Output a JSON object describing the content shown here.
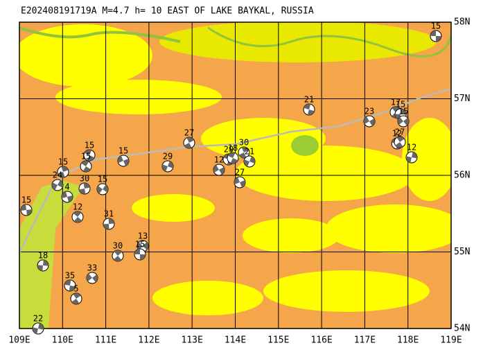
{
  "title": "E202408191719A M=4.7 h= 10 EAST OF LAKE BAYKAL, RUSSIA",
  "lat_labels": [
    "58N",
    "57N",
    "56N",
    "55N",
    "54N"
  ],
  "lon_labels": [
    "109E",
    "110E",
    "111E",
    "112E",
    "113E",
    "114E",
    "115E",
    "116E",
    "117E",
    "118E",
    "119E"
  ],
  "events": [
    {
      "label": "15"
    },
    {
      "label": "17"
    },
    {
      "label": "15"
    },
    {
      "label": "15"
    },
    {
      "label": "12"
    },
    {
      "label": "27"
    },
    {
      "label": "12"
    },
    {
      "label": "23"
    },
    {
      "label": "21"
    },
    {
      "label": "27"
    },
    {
      "label": "29"
    },
    {
      "label": "15"
    },
    {
      "label": "15"
    },
    {
      "label": "15"
    },
    {
      "label": "24"
    },
    {
      "label": "4"
    },
    {
      "label": "15"
    },
    {
      "label": "30"
    },
    {
      "label": "15"
    },
    {
      "label": "15"
    },
    {
      "label": "12"
    },
    {
      "label": "31"
    },
    {
      "label": "13"
    },
    {
      "label": "15"
    },
    {
      "label": "30"
    },
    {
      "label": "18"
    },
    {
      "label": "33"
    },
    {
      "label": "35"
    },
    {
      "label": "5"
    },
    {
      "label": "22"
    },
    {
      "label": "12"
    },
    {
      "label": "29"
    },
    {
      "label": "30"
    },
    {
      "label": "21"
    },
    {
      "label": "27"
    },
    {
      "label": "18"
    }
  ]
}
